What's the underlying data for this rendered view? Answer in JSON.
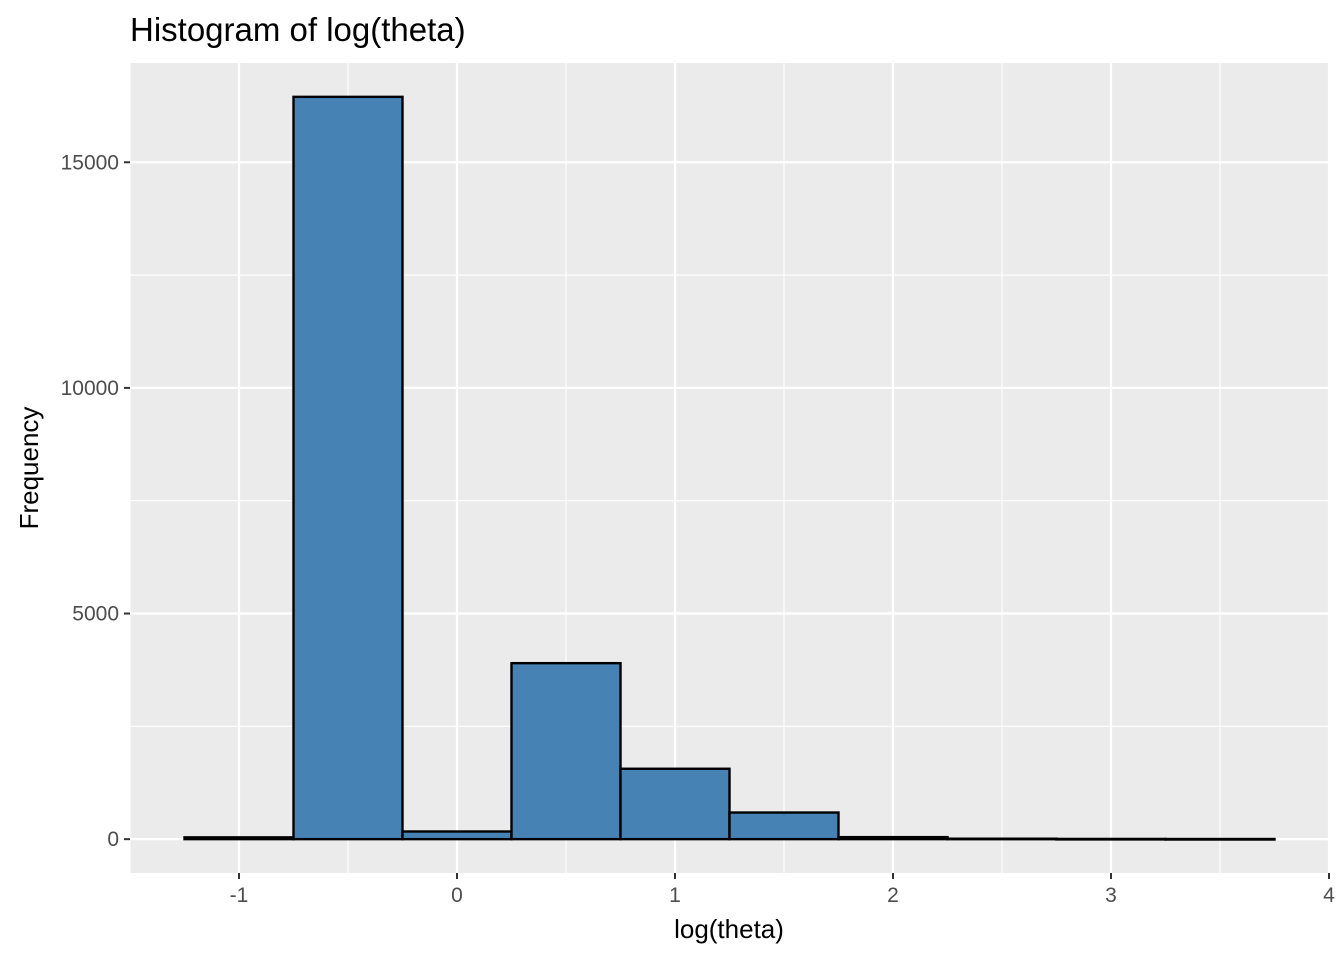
{
  "chart_data": {
    "type": "bar",
    "title": "Histogram of log(theta)",
    "xlabel": "log(theta)",
    "ylabel": "Frequency",
    "xlim": [
      -1.5,
      4.0
    ],
    "ylim": [
      -750,
      17200
    ],
    "grid": true,
    "x_ticks": [
      "-1",
      "0",
      "1",
      "2",
      "3",
      "4"
    ],
    "y_ticks": [
      "0",
      "5000",
      "10000",
      "15000"
    ],
    "bar_fill": "#4682b4",
    "bar_stroke": "#000000",
    "panel_background": "#ebebeb",
    "bins": [
      {
        "x0": -1.25,
        "x1": -0.75,
        "count": 40
      },
      {
        "x0": -0.75,
        "x1": -0.25,
        "count": 16450
      },
      {
        "x0": -0.25,
        "x1": 0.25,
        "count": 170
      },
      {
        "x0": 0.25,
        "x1": 0.75,
        "count": 3900
      },
      {
        "x0": 0.75,
        "x1": 1.25,
        "count": 1560
      },
      {
        "x0": 1.25,
        "x1": 1.75,
        "count": 590
      },
      {
        "x0": 1.75,
        "x1": 2.25,
        "count": 45
      },
      {
        "x0": 2.25,
        "x1": 2.75,
        "count": 10
      },
      {
        "x0": 2.75,
        "x1": 3.25,
        "count": 5
      },
      {
        "x0": 3.25,
        "x1": 3.75,
        "count": 3
      }
    ]
  }
}
